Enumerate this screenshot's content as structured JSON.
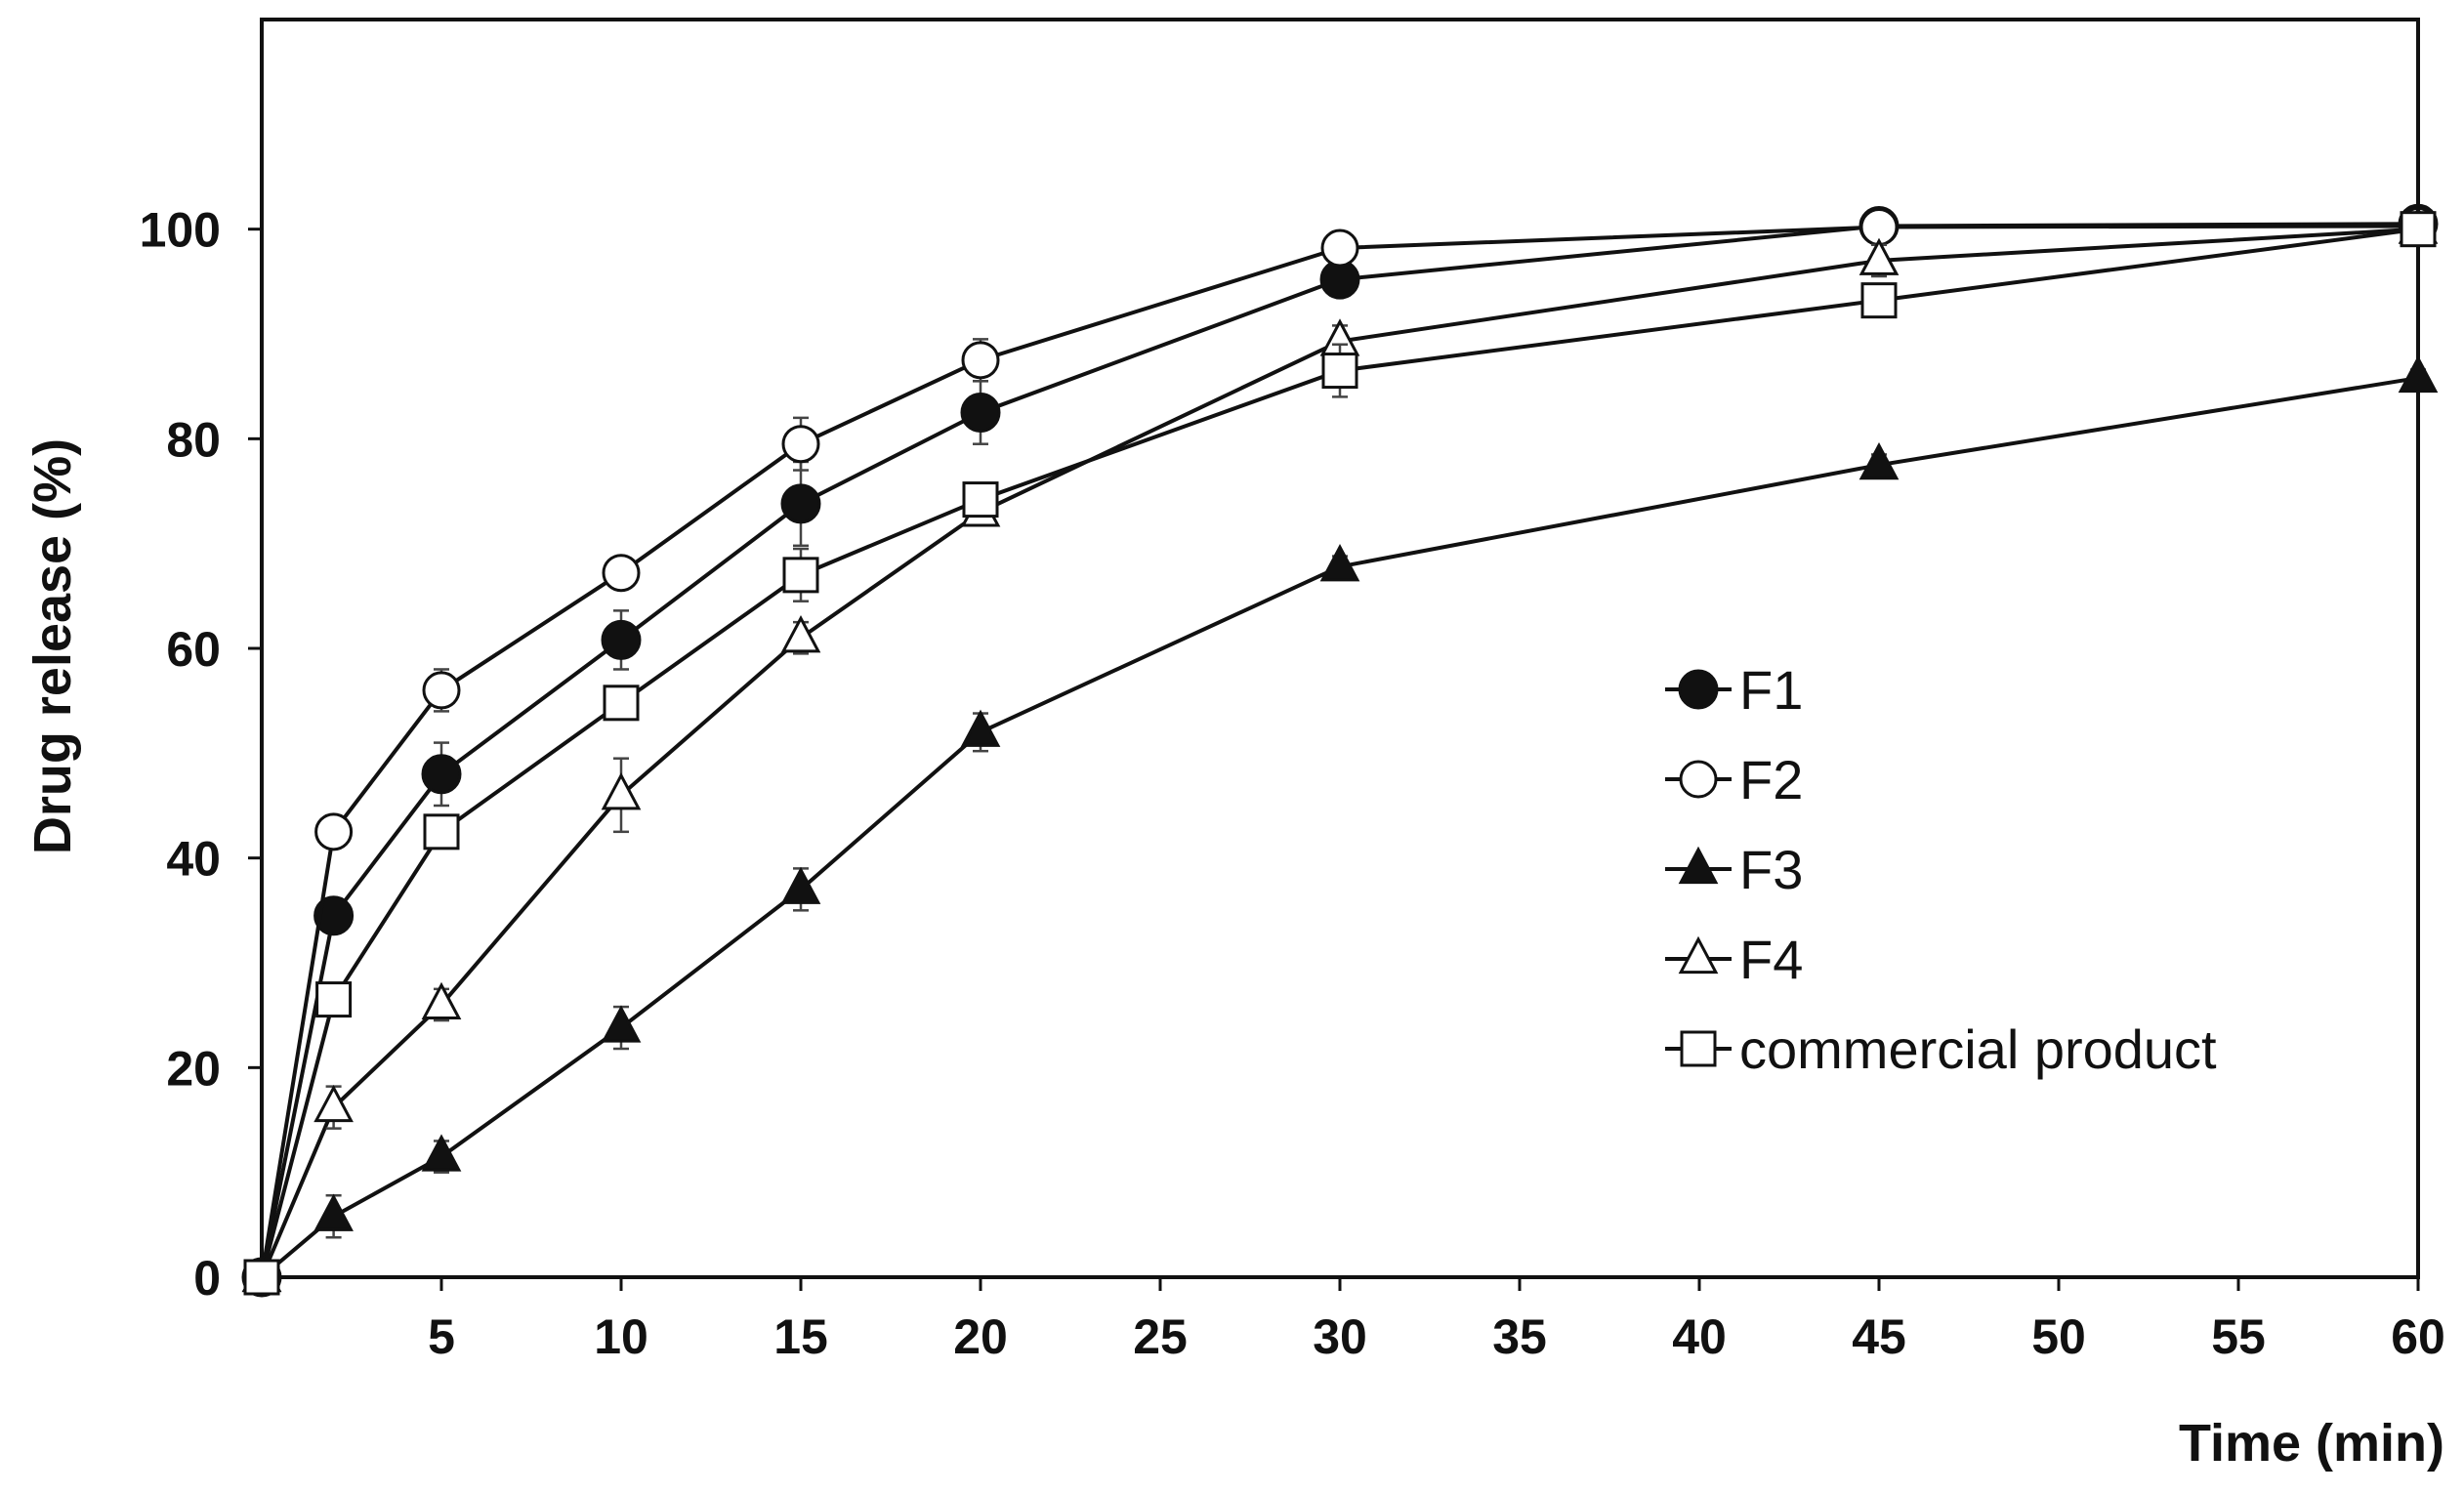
{
  "chart_data": {
    "type": "line",
    "title": "",
    "xlabel": "Time (min)",
    "ylabel": "Drug release (%)",
    "xlim": [
      0,
      60
    ],
    "ylim": [
      0,
      120
    ],
    "grid": false,
    "legend_position": "center-right",
    "x_ticks": [
      5,
      10,
      15,
      20,
      25,
      30,
      35,
      40,
      45,
      50,
      55,
      60
    ],
    "x_tick_labels": [
      "5",
      "10",
      "15",
      "20",
      "25",
      "30",
      "35",
      "40",
      "45",
      "50",
      "55",
      "60"
    ],
    "y_ticks": [
      0,
      20,
      40,
      60,
      80,
      100
    ],
    "y_tick_labels": [
      "0",
      "20",
      "40",
      "60",
      "80",
      "100"
    ],
    "x": [
      0,
      2,
      5,
      10,
      15,
      20,
      30,
      45,
      60
    ],
    "series": [
      {
        "name": "F1",
        "marker": "circle-filled",
        "values": [
          0,
          34.5,
          48,
          60.8,
          73.8,
          82.5,
          95.2,
          100.3,
          100.5
        ],
        "errors": [
          0,
          1.5,
          3,
          2.8,
          4,
          3,
          1.5,
          1,
          0.8
        ]
      },
      {
        "name": "F2",
        "marker": "circle-open",
        "values": [
          0,
          42.5,
          56,
          67.2,
          79.5,
          87.5,
          98.2,
          100.2,
          100.3
        ],
        "errors": [
          0,
          1,
          2,
          1.2,
          2.5,
          2,
          1,
          0.8,
          0.5
        ]
      },
      {
        "name": "F3",
        "marker": "triangle-filled",
        "values": [
          0,
          5.8,
          11.5,
          23.8,
          37,
          52,
          67.8,
          77.5,
          85.8
        ],
        "errors": [
          0,
          2,
          1.5,
          2,
          2,
          1.8,
          1,
          1,
          0.8
        ]
      },
      {
        "name": "F4",
        "marker": "triangle-open",
        "values": [
          0,
          16.2,
          26,
          46,
          61,
          73,
          89.3,
          97,
          100
        ],
        "errors": [
          0,
          2,
          1.5,
          3.5,
          1.5,
          1,
          1.5,
          1.5,
          0.5
        ]
      },
      {
        "name": "commercial product",
        "marker": "square-open",
        "values": [
          0,
          26.5,
          42.5,
          54.8,
          67,
          74.2,
          86.5,
          93.2,
          100
        ],
        "errors": [
          0,
          1,
          1.2,
          1.5,
          2.5,
          1.5,
          2.5,
          1.5,
          0.5
        ]
      }
    ]
  }
}
